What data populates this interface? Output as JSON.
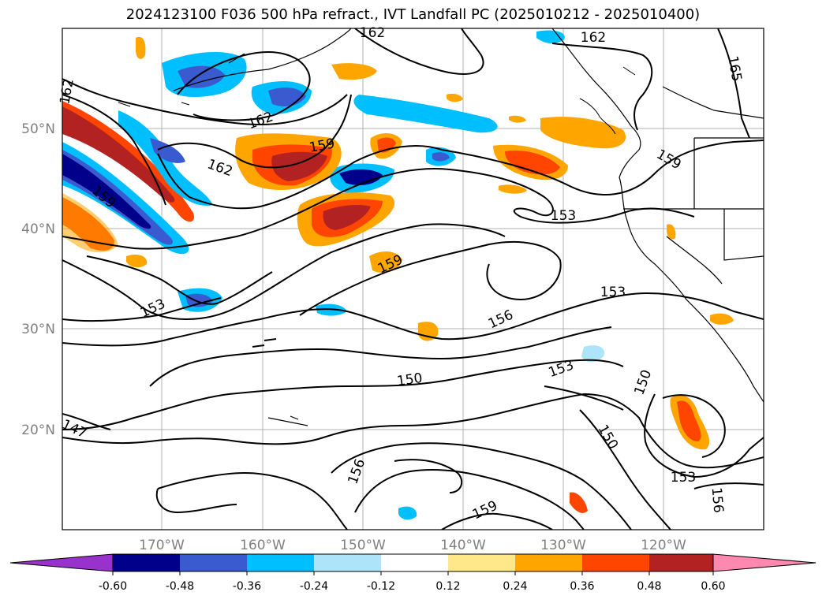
{
  "title": "2024123100 F036 500 hPa refract., IVT Landfall PC (2025010212 - 2025010400)",
  "map": {
    "lat_labels": [
      "50°N",
      "40°N",
      "30°N",
      "20°N"
    ],
    "lon_labels": [
      "170°W",
      "160°W",
      "150°W",
      "140°W",
      "130°W",
      "120°W"
    ],
    "contour_labels": [
      "162",
      "162",
      "165",
      "162",
      "162",
      "159",
      "162",
      "159",
      "153",
      "159",
      "159",
      "153",
      "153",
      "156",
      "150",
      "153",
      "150",
      "150",
      "147",
      "156",
      "159",
      "153",
      "156"
    ],
    "colors": {
      "land_border": "#000000",
      "grid": "#b0b0b0",
      "contour": "#000000"
    }
  },
  "colorbar": {
    "levels": [
      "-0.60",
      "-0.48",
      "-0.36",
      "-0.24",
      "-0.12",
      "0.12",
      "0.24",
      "0.36",
      "0.48",
      "0.60"
    ],
    "colors": [
      "#9932cc",
      "#00008b",
      "#3a5bd0",
      "#00bfff",
      "#aee4fa",
      "#ffffff",
      "#ffe88a",
      "#ffa500",
      "#ff4500",
      "#b22222",
      "#ff88b0"
    ]
  }
}
